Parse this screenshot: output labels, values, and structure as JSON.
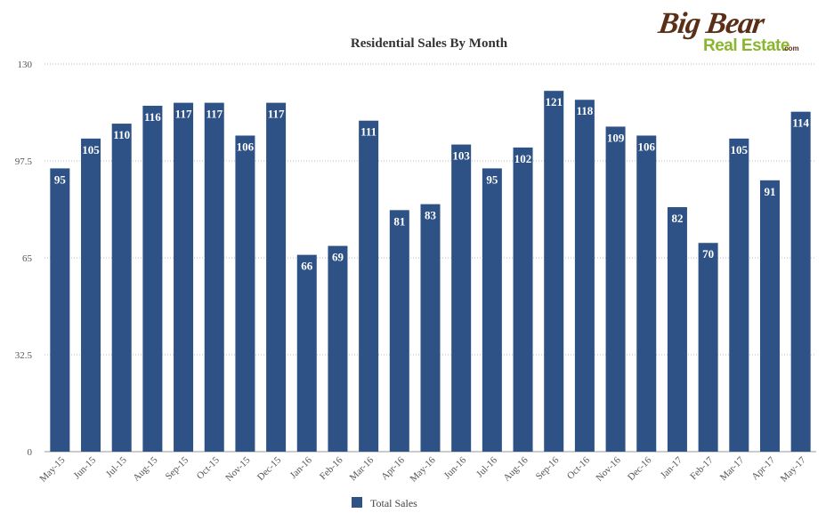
{
  "logo": {
    "big": "Big Bear",
    "sub": "Real Estate",
    "com": ".com",
    "colors": {
      "brown": "#5b2f17",
      "green": "#8ab62f"
    }
  },
  "chart_data": {
    "type": "bar",
    "title": "Residential Sales By Month",
    "xlabel": "",
    "ylabel": "",
    "ylim": [
      0,
      130
    ],
    "yticks": [
      0,
      32.5,
      65,
      97.5,
      130
    ],
    "yticklabels": [
      "0",
      "32.5",
      "65",
      "97.5",
      "130"
    ],
    "grid": true,
    "legend_position": "bottom-center",
    "bar_color": "#2e5286",
    "categories": [
      "May-15",
      "Jun-15",
      "Jul-15",
      "Aug-15",
      "Sep-15",
      "Oct-15",
      "Nov-15",
      "Dec-15",
      "Jan-16",
      "Feb-16",
      "Mar-16",
      "Apr-16",
      "May-16",
      "Jun-16",
      "Jul-16",
      "Aug-16",
      "Sep-16",
      "Oct-16",
      "Nov-16",
      "Dec-16",
      "Jan-17",
      "Feb-17",
      "Mar-17",
      "Apr-17",
      "May-17"
    ],
    "series": [
      {
        "name": "Total Sales",
        "values": [
          95,
          105,
          110,
          116,
          117,
          117,
          106,
          117,
          66,
          69,
          111,
          81,
          83,
          103,
          95,
          102,
          121,
          118,
          109,
          106,
          82,
          70,
          105,
          91,
          114
        ]
      }
    ]
  }
}
